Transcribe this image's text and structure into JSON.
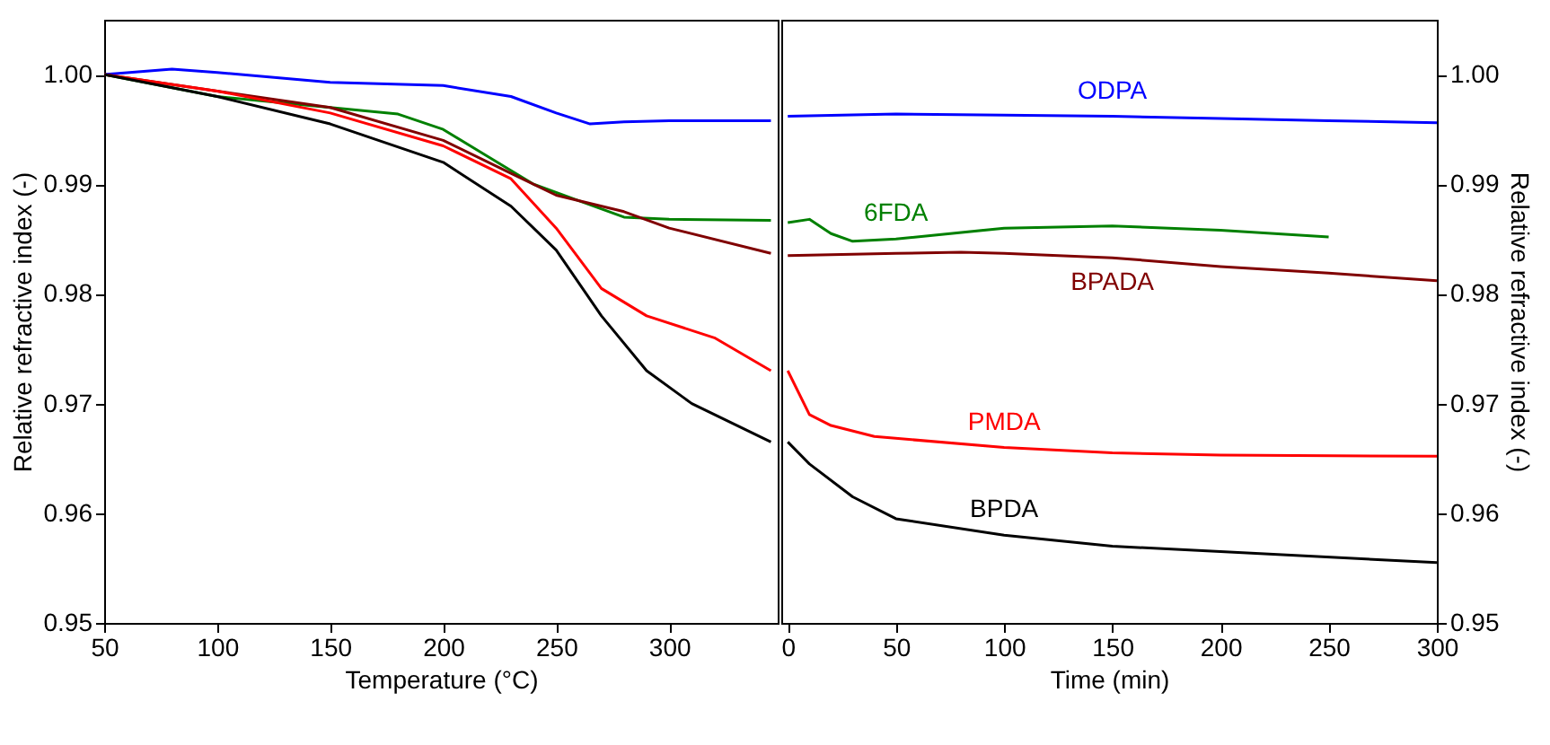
{
  "chart_data": [
    {
      "type": "line",
      "xlabel": "Temperature (°C)",
      "ylabel": "Relative refractive index (-)",
      "xlim": [
        50,
        348
      ],
      "xticks": [
        50,
        100,
        150,
        200,
        250,
        300
      ],
      "ylim": [
        0.95,
        1.005
      ],
      "yticks": [
        0.95,
        0.96,
        0.97,
        0.98,
        0.99,
        {
          "value": 1.0,
          "label": "1.00"
        }
      ],
      "grid": false,
      "series": [
        {
          "color": "#0000ff",
          "x": [
            50,
            80,
            100,
            150,
            200,
            230,
            250,
            265,
            280,
            300,
            345
          ],
          "values": [
            1.0,
            1.0005,
            1.0002,
            0.9993,
            0.999,
            0.998,
            0.9965,
            0.9955,
            0.9957,
            0.9958,
            0.9958
          ]
        },
        {
          "color": "#008000",
          "x": [
            50,
            100,
            150,
            180,
            200,
            220,
            240,
            260,
            280,
            300,
            345
          ],
          "values": [
            1.0,
            0.998,
            0.997,
            0.9964,
            0.995,
            0.9925,
            0.99,
            0.9885,
            0.987,
            0.9868,
            0.9867
          ]
        },
        {
          "color": "#800000",
          "x": [
            50,
            100,
            150,
            200,
            230,
            250,
            280,
            300,
            345
          ],
          "values": [
            1.0,
            0.9985,
            0.997,
            0.994,
            0.991,
            0.989,
            0.9875,
            0.986,
            0.9837
          ]
        },
        {
          "color": "#ff0000",
          "x": [
            50,
            100,
            150,
            200,
            230,
            250,
            270,
            290,
            320,
            345
          ],
          "values": [
            1.0,
            0.9985,
            0.9965,
            0.9935,
            0.9905,
            0.986,
            0.9805,
            0.978,
            0.976,
            0.973
          ]
        },
        {
          "color": "#000000",
          "x": [
            50,
            100,
            150,
            200,
            230,
            250,
            270,
            290,
            310,
            345
          ],
          "values": [
            1.0,
            0.998,
            0.9955,
            0.992,
            0.988,
            0.984,
            0.978,
            0.973,
            0.97,
            0.9665
          ]
        }
      ]
    },
    {
      "type": "line",
      "xlabel": "Time (min)",
      "ylabel": "Relative refractive index (-)",
      "xlim": [
        -3,
        300
      ],
      "xticks": [
        0,
        50,
        100,
        150,
        200,
        250,
        300
      ],
      "ylim": [
        0.95,
        1.005
      ],
      "yticks": [
        0.95,
        0.96,
        0.97,
        0.98,
        0.99,
        {
          "value": 1.0,
          "label": "1.00"
        }
      ],
      "grid": false,
      "series": [
        {
          "name": "ODPA",
          "color": "#0000ff",
          "x": [
            0,
            50,
            100,
            150,
            200,
            250,
            300
          ],
          "values": [
            0.9962,
            0.9964,
            0.9963,
            0.9962,
            0.996,
            0.9958,
            0.9956
          ]
        },
        {
          "name": "6FDA",
          "color": "#008000",
          "x": [
            0,
            10,
            20,
            30,
            50,
            100,
            150,
            200,
            250
          ],
          "values": [
            0.9865,
            0.9868,
            0.9855,
            0.9848,
            0.985,
            0.986,
            0.9862,
            0.9858,
            0.9852
          ]
        },
        {
          "name": "BPADA",
          "color": "#800000",
          "x": [
            0,
            50,
            80,
            100,
            150,
            200,
            250,
            300
          ],
          "values": [
            0.9835,
            0.9837,
            0.9838,
            0.9837,
            0.9833,
            0.9825,
            0.9819,
            0.9812
          ]
        },
        {
          "name": "PMDA",
          "color": "#ff0000",
          "x": [
            0,
            10,
            20,
            40,
            100,
            150,
            200,
            300
          ],
          "values": [
            0.973,
            0.969,
            0.968,
            0.967,
            0.966,
            0.9655,
            0.9653,
            0.9652
          ]
        },
        {
          "name": "BPDA",
          "color": "#000000",
          "x": [
            0,
            10,
            30,
            50,
            100,
            150,
            200,
            300
          ],
          "values": [
            0.9665,
            0.9645,
            0.9615,
            0.9595,
            0.958,
            0.957,
            0.9565,
            0.9555
          ]
        }
      ]
    }
  ]
}
